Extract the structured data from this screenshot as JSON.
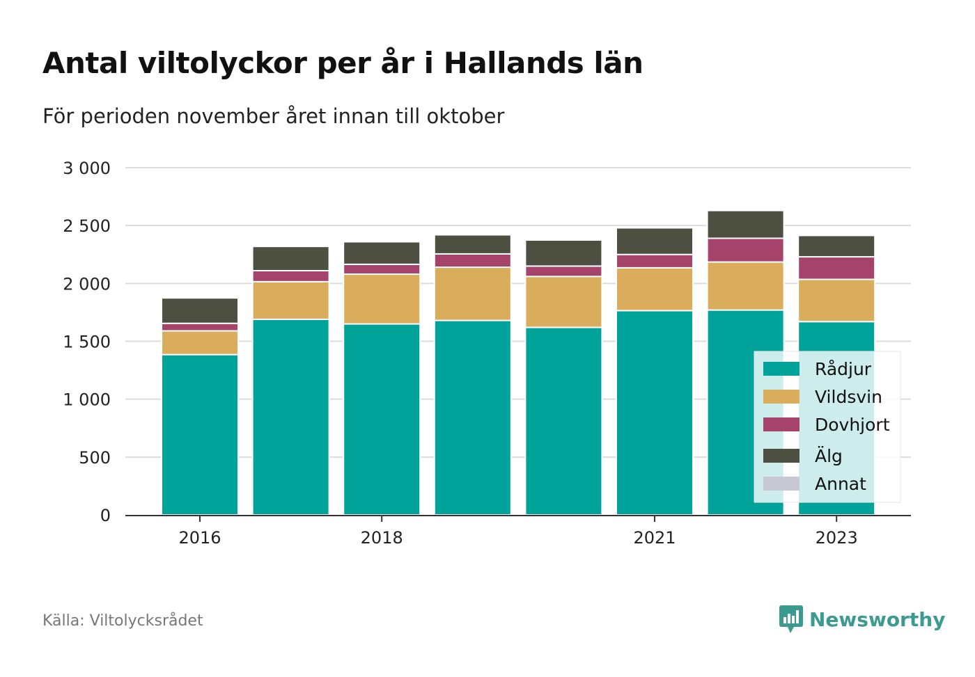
{
  "title": "Antal viltolyckor per år i Hallands län",
  "subtitle": "För perioden november året innan till oktober",
  "source": "Källa: Viltolycksrådet",
  "brand": "Newsworthy",
  "chart_data": {
    "type": "bar",
    "stacked": true,
    "categories": [
      2016,
      2017,
      2018,
      2019,
      2020,
      2021,
      2022,
      2023
    ],
    "x_tick_labels": [
      "2016",
      "2018",
      "2021",
      "2023"
    ],
    "x_tick_values": [
      2016,
      2018,
      2021,
      2023
    ],
    "y_ticks": [
      0,
      500,
      1000,
      1500,
      2000,
      2500,
      3000
    ],
    "y_tick_labels": [
      "0",
      "500",
      "1 000",
      "1 500",
      "2 000",
      "2 500",
      "3 000"
    ],
    "ylim": [
      0,
      3000
    ],
    "grid": true,
    "legend_position": "bottom-right",
    "series": [
      {
        "name": "Rådjur",
        "color": "#00a39a",
        "values": [
          1385,
          1690,
          1650,
          1680,
          1620,
          1765,
          1770,
          1670
        ]
      },
      {
        "name": "Vildsvin",
        "color": "#d9ad5b",
        "values": [
          205,
          325,
          430,
          460,
          440,
          370,
          415,
          365
        ]
      },
      {
        "name": "Dovhjort",
        "color": "#a6436a",
        "values": [
          65,
          95,
          85,
          115,
          90,
          115,
          205,
          195
        ]
      },
      {
        "name": "Älg",
        "color": "#4d4f40",
        "values": [
          220,
          210,
          195,
          165,
          225,
          230,
          240,
          185
        ]
      },
      {
        "name": "Annat",
        "color": "#c8c7d4",
        "values": [
          5,
          10,
          10,
          10,
          5,
          10,
          5,
          10
        ]
      }
    ]
  }
}
